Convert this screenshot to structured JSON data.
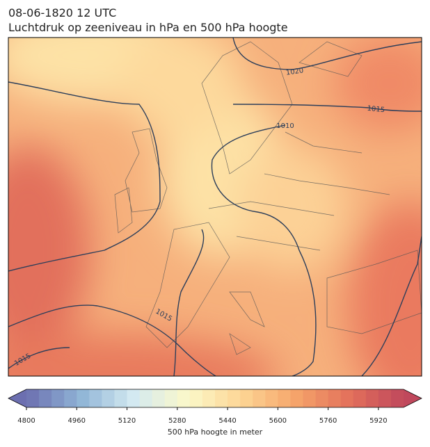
{
  "header": {
    "date": "08-06-1820 12 UTC",
    "title": "Luchtdruk op zeeniveau in hPa en 500 hPa hoogte"
  },
  "map": {
    "contour_labels": [
      1020,
      1015,
      1010,
      1015,
      1015
    ]
  },
  "colorbar": {
    "label": "500 hPa hoogte in meter",
    "lim": [
      4800,
      6000
    ],
    "ticks": [
      4800,
      4960,
      5120,
      5280,
      5440,
      5600,
      5760,
      5920
    ],
    "colormap": [
      "#6c6fb0",
      "#8fb4d6",
      "#d4eaf1",
      "#fbf8c9",
      "#fdd594",
      "#f5a46a",
      "#e3705b",
      "#c0485c"
    ]
  }
}
